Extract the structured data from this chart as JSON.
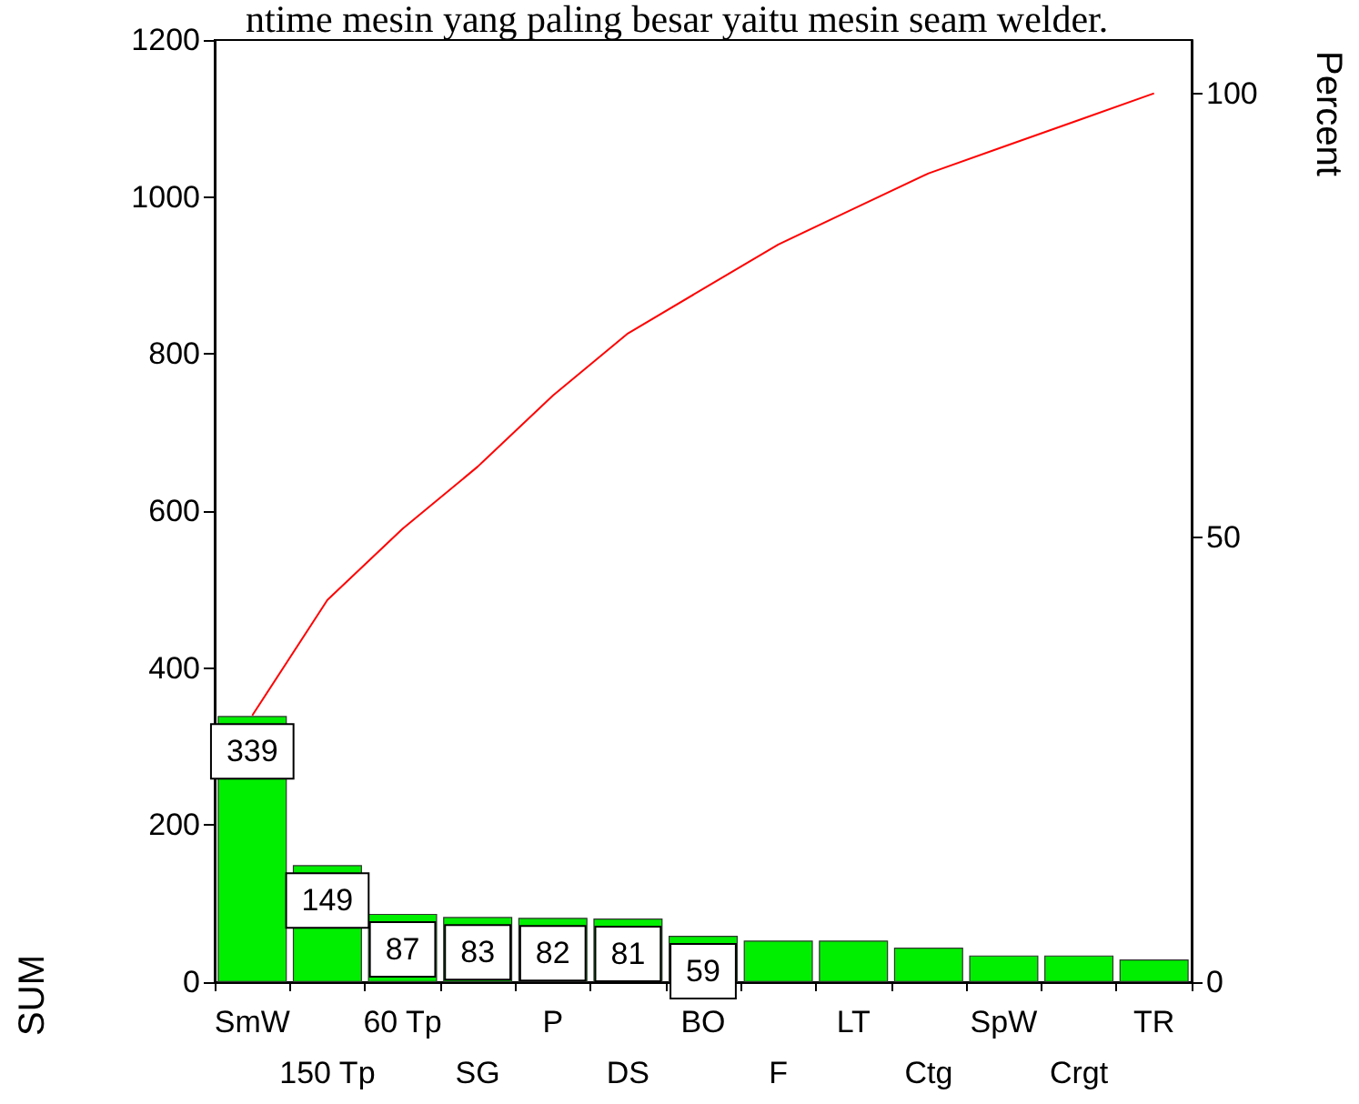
{
  "chart_data": {
    "type": "bar",
    "annotations": [
      "ntime mesin yang paling besar yaitu mesin seam welder."
    ],
    "ylabel": "SUM",
    "y2label": "Percent",
    "categories": [
      "SmW",
      "150 Tp",
      "60 Tp",
      "SG",
      "P",
      "DS",
      "BO",
      "F",
      "LT",
      "Ctg",
      "SpW",
      "Crgt",
      "TR"
    ],
    "series": [
      {
        "color": "#00ee00",
        "values": [
          339,
          149,
          87,
          83,
          82,
          81,
          59,
          53,
          53,
          44,
          34,
          34,
          29
        ],
        "value_labels": [
          "339",
          "149",
          "87",
          "83",
          "82",
          "81",
          "59",
          null,
          null,
          null,
          null,
          null,
          null
        ]
      },
      {
        "type": "line",
        "axis": "y2",
        "color": "#ff0000",
        "values": [
          30,
          43,
          51,
          58,
          66,
          73,
          78,
          83,
          87,
          91,
          94,
          97,
          100
        ]
      }
    ],
    "ylim": [
      0,
      1200
    ],
    "yticks": [
      0,
      200,
      400,
      600,
      800,
      1000,
      1200
    ],
    "y2lim": [
      0,
      106
    ],
    "y2ticks": [
      0,
      50,
      100
    ],
    "grid": false,
    "legend": false,
    "marker": "none",
    "line_style": "solid"
  }
}
